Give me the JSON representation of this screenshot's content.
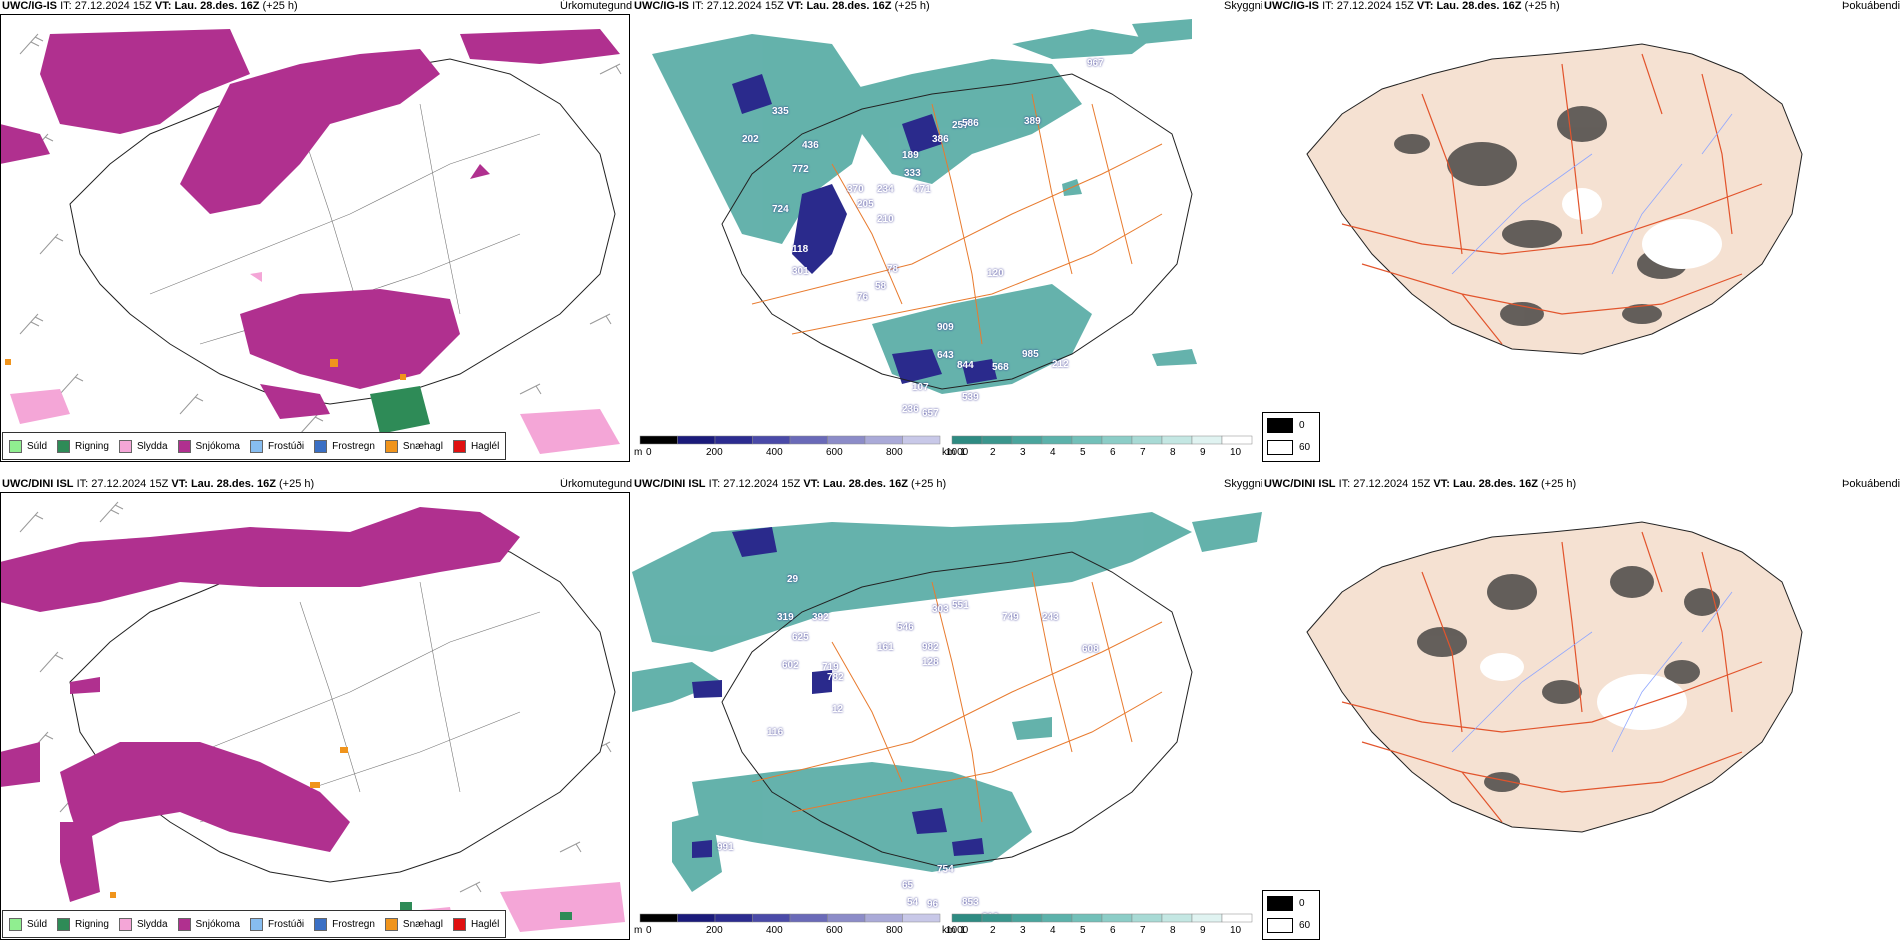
{
  "rows": [
    {
      "precip": {
        "model": "UWC/IG-IS",
        "it_label": "IT:",
        "it": "27.12.2024 15Z",
        "vt_label": "VT:",
        "vt": "Lau. 28.des. 16Z",
        "lead": "(+25 h)",
        "param": "Úrkomutegund"
      },
      "cloud": {
        "model": "UWC/IG-IS",
        "it_label": "IT:",
        "it": "27.12.2024 15Z",
        "vt_label": "VT:",
        "vt": "Lau. 28.des. 16Z",
        "lead": "(+25 h)",
        "param": "Skyggni"
      },
      "fog": {
        "model": "UWC/IG-IS",
        "it_label": "IT:",
        "it": "27.12.2024 15Z",
        "vt_label": "VT:",
        "vt": "Lau. 28.des. 16Z",
        "lead": "(+25 h)",
        "param": "Þokuábendi"
      },
      "visibility_labels": [
        "967",
        "335",
        "202",
        "436",
        "772",
        "724",
        "370",
        "234",
        "205",
        "210",
        "118",
        "301",
        "78",
        "58",
        "76",
        "189",
        "333",
        "471",
        "257",
        "386",
        "586",
        "389",
        "120",
        "909",
        "985",
        "643",
        "844",
        "568",
        "107",
        "539",
        "236",
        "657",
        "212"
      ]
    },
    {
      "precip": {
        "model": "UWC/DINI ISL",
        "it_label": "IT:",
        "it": "27.12.2024 15Z",
        "vt_label": "VT:",
        "vt": "Lau. 28.des. 16Z",
        "lead": "(+25 h)",
        "param": "Úrkomutegund"
      },
      "cloud": {
        "model": "UWC/DINI ISL",
        "it_label": "IT:",
        "it": "27.12.2024 15Z",
        "vt_label": "VT:",
        "vt": "Lau. 28.des. 16Z",
        "lead": "(+25 h)",
        "param": "Skyggni"
      },
      "fog": {
        "model": "UWC/DINI ISL",
        "it_label": "IT:",
        "it": "27.12.2024 15Z",
        "vt_label": "VT:",
        "vt": "Lau. 28.des. 16Z",
        "lead": "(+25 h)",
        "param": "Þokuábendi"
      },
      "visibility_labels": [
        "29",
        "319",
        "625",
        "392",
        "602",
        "719",
        "782",
        "546",
        "161",
        "982",
        "128",
        "303",
        "551",
        "749",
        "243",
        "608",
        "12",
        "116",
        "991",
        "754",
        "65",
        "54",
        "96",
        "853",
        "812"
      ]
    }
  ],
  "precip_legend": [
    {
      "label": "Súld",
      "color": "#90ee90"
    },
    {
      "label": "Rigning",
      "color": "#2e8b57"
    },
    {
      "label": "Slydda",
      "color": "#f4a6d7"
    },
    {
      "label": "Snjókoma",
      "color": "#b0308f"
    },
    {
      "label": "Frostúði",
      "color": "#87bdf0"
    },
    {
      "label": "Frostregn",
      "color": "#3a6fc4"
    },
    {
      "label": "Snæhagl",
      "color": "#f0941c"
    },
    {
      "label": "Haglél",
      "color": "#e01010"
    }
  ],
  "cloud_legend": {
    "base_unit": "m",
    "base_ticks": [
      "0",
      "200",
      "400",
      "600",
      "800",
      "1000"
    ],
    "vis_unit": "km",
    "vis_ticks": [
      "1",
      "2",
      "3",
      "4",
      "5",
      "6",
      "7",
      "8",
      "9",
      "10"
    ]
  },
  "fog_legend": {
    "high": "0",
    "low": "60"
  },
  "colors": {
    "snow": "#b0308f",
    "teal": "#2e8b82",
    "navy": "#2a2a8c",
    "road": "#e87b2f",
    "fog_land": "#f5e1d2",
    "fog_road": "#e2542c",
    "river": "#8fa6ff"
  }
}
